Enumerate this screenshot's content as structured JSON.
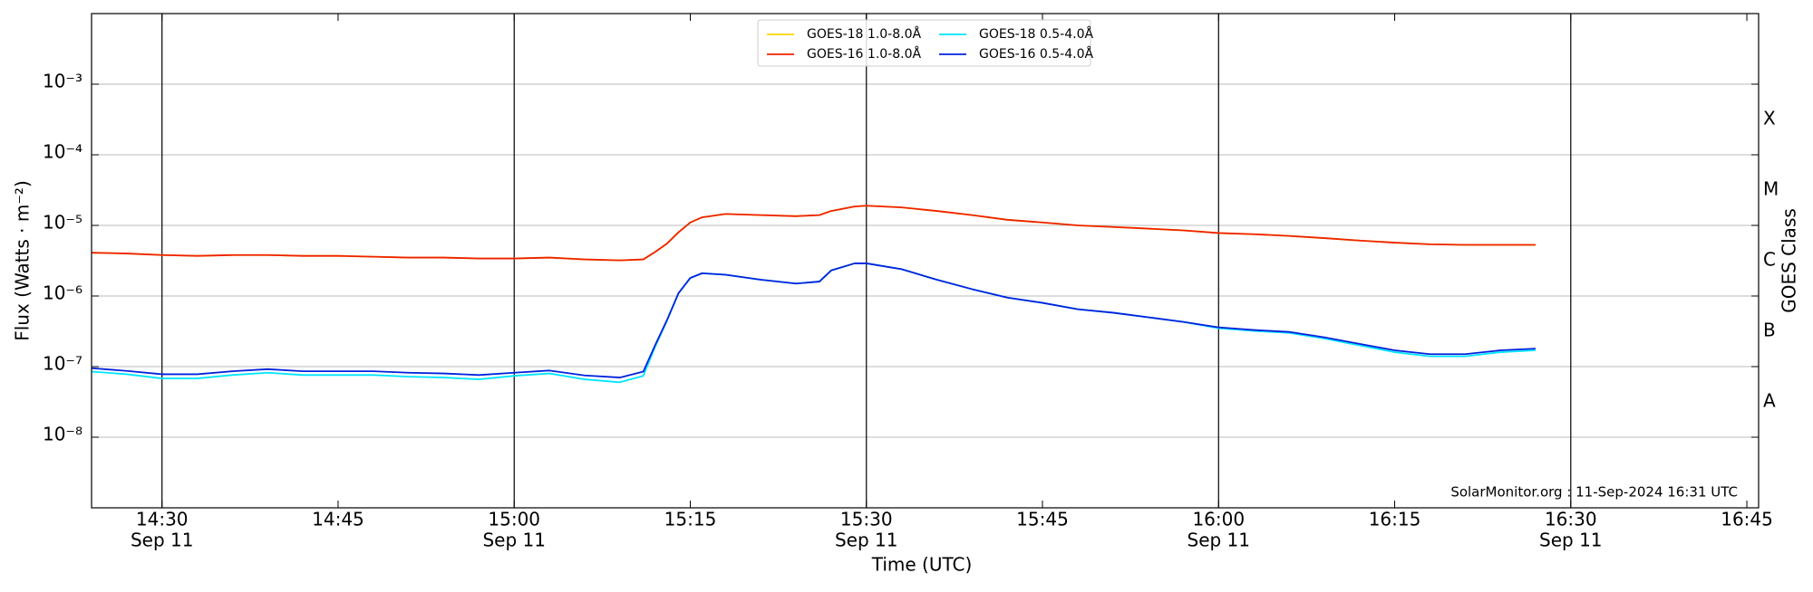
{
  "chart_data": {
    "type": "line",
    "log_y": true,
    "grid": true,
    "legend": "upper center",
    "xlabel": "Time (UTC)",
    "ylabel": "Flux (Watts · m⁻²)",
    "y2label": "GOES Class",
    "annotation": "SolarMonitor.org : 11-Sep-2024 16:31 UTC",
    "xlim": [
      "14:24",
      "16:46"
    ],
    "xticks": [
      {
        "value": "14:30",
        "label": "14:30",
        "date": "Sep 11"
      },
      {
        "value": "14:45",
        "label": "14:45"
      },
      {
        "value": "15:00",
        "label": "15:00",
        "date": "Sep 11"
      },
      {
        "value": "15:15",
        "label": "15:15"
      },
      {
        "value": "15:30",
        "label": "15:30",
        "date": "Sep 11"
      },
      {
        "value": "15:45",
        "label": "15:45"
      },
      {
        "value": "16:00",
        "label": "16:00",
        "date": "Sep 11"
      },
      {
        "value": "16:15",
        "label": "16:15"
      },
      {
        "value": "16:30",
        "label": "16:30",
        "date": "Sep 11"
      },
      {
        "value": "16:45",
        "label": "16:45"
      }
    ],
    "ylim": [
      1e-09,
      0.01
    ],
    "yticks": [
      {
        "value": 1e-08,
        "label": "10⁻⁸"
      },
      {
        "value": 1e-07,
        "label": "10⁻⁷"
      },
      {
        "value": 1e-06,
        "label": "10⁻⁶"
      },
      {
        "value": 1e-05,
        "label": "10⁻⁵"
      },
      {
        "value": 0.0001,
        "label": "10⁻⁴"
      },
      {
        "value": 0.001,
        "label": "10⁻³"
      }
    ],
    "y2ticks": [
      {
        "value": 3.16e-08,
        "label": "A"
      },
      {
        "value": 3.16e-07,
        "label": "B"
      },
      {
        "value": 3.16e-06,
        "label": "C"
      },
      {
        "value": 3.16e-05,
        "label": "M"
      },
      {
        "value": 0.000316,
        "label": "X"
      }
    ],
    "x": [
      "14:24",
      "14:27",
      "14:30",
      "14:33",
      "14:36",
      "14:39",
      "14:42",
      "14:45",
      "14:48",
      "14:51",
      "14:54",
      "14:57",
      "15:00",
      "15:03",
      "15:06",
      "15:09",
      "15:11",
      "15:12",
      "15:13",
      "15:14",
      "15:15",
      "15:16",
      "15:18",
      "15:21",
      "15:24",
      "15:26",
      "15:27",
      "15:29",
      "15:30",
      "15:33",
      "15:36",
      "15:39",
      "15:42",
      "15:45",
      "15:48",
      "15:51",
      "15:54",
      "15:57",
      "16:00",
      "16:03",
      "16:06",
      "16:09",
      "16:12",
      "16:15",
      "16:18",
      "16:21",
      "16:24",
      "16:27"
    ],
    "series": [
      {
        "name": "GOES-18 1.0-8.0Å",
        "color": "#ffd700",
        "values": [
          4.1e-06,
          4e-06,
          3.8e-06,
          3.7e-06,
          3.8e-06,
          3.8e-06,
          3.7e-06,
          3.7e-06,
          3.6e-06,
          3.5e-06,
          3.5e-06,
          3.4e-06,
          3.4e-06,
          3.5e-06,
          3.3e-06,
          3.2e-06,
          3.3e-06,
          4.2e-06,
          5.5e-06,
          8e-06,
          1.1e-05,
          1.3e-05,
          1.45e-05,
          1.4e-05,
          1.35e-05,
          1.4e-05,
          1.6e-05,
          1.85e-05,
          1.9e-05,
          1.8e-05,
          1.6e-05,
          1.4e-05,
          1.2e-05,
          1.1e-05,
          1e-05,
          9.5e-06,
          9e-06,
          8.5e-06,
          7.8e-06,
          7.5e-06,
          7.1e-06,
          6.6e-06,
          6.1e-06,
          5.7e-06,
          5.4e-06,
          5.3e-06,
          5.3e-06,
          5.3e-06
        ]
      },
      {
        "name": "GOES-16 1.0-8.0Å",
        "color": "#ee2200",
        "values": [
          4.1e-06,
          4e-06,
          3.8e-06,
          3.7e-06,
          3.8e-06,
          3.8e-06,
          3.7e-06,
          3.7e-06,
          3.6e-06,
          3.5e-06,
          3.5e-06,
          3.4e-06,
          3.4e-06,
          3.5e-06,
          3.3e-06,
          3.2e-06,
          3.3e-06,
          4.2e-06,
          5.5e-06,
          8e-06,
          1.1e-05,
          1.3e-05,
          1.45e-05,
          1.4e-05,
          1.35e-05,
          1.4e-05,
          1.6e-05,
          1.85e-05,
          1.9e-05,
          1.8e-05,
          1.6e-05,
          1.4e-05,
          1.2e-05,
          1.1e-05,
          1e-05,
          9.5e-06,
          9e-06,
          8.5e-06,
          7.8e-06,
          7.5e-06,
          7.1e-06,
          6.6e-06,
          6.1e-06,
          5.7e-06,
          5.4e-06,
          5.3e-06,
          5.3e-06,
          5.3e-06
        ]
      },
      {
        "name": "GOES-18 0.5-4.0Å",
        "color": "#00e5ff",
        "values": [
          8.5e-08,
          7.8e-08,
          6.8e-08,
          6.8e-08,
          7.6e-08,
          8.2e-08,
          7.6e-08,
          7.6e-08,
          7.6e-08,
          7.2e-08,
          7e-08,
          6.6e-08,
          7.4e-08,
          8e-08,
          6.6e-08,
          6e-08,
          7.4e-08,
          1.9e-07,
          4.4e-07,
          1.1e-06,
          1.8e-06,
          2.1e-06,
          2e-06,
          1.7e-06,
          1.5e-06,
          1.6e-06,
          2.3e-06,
          2.9e-06,
          2.9e-06,
          2.4e-06,
          1.7e-06,
          1.25e-06,
          9.5e-07,
          8e-07,
          6.5e-07,
          5.8e-07,
          5e-07,
          4.3e-07,
          3.5e-07,
          3.2e-07,
          3e-07,
          2.5e-07,
          2e-07,
          1.6e-07,
          1.4e-07,
          1.4e-07,
          1.6e-07,
          1.7e-07
        ]
      },
      {
        "name": "GOES-16 0.5-4.0Å",
        "color": "#0022dd",
        "values": [
          9.5e-08,
          8.7e-08,
          7.8e-08,
          7.8e-08,
          8.6e-08,
          9.2e-08,
          8.6e-08,
          8.6e-08,
          8.6e-08,
          8.2e-08,
          8e-08,
          7.6e-08,
          8.2e-08,
          8.8e-08,
          7.5e-08,
          7e-08,
          8.5e-08,
          2e-07,
          4.5e-07,
          1.1e-06,
          1.8e-06,
          2.1e-06,
          2e-06,
          1.7e-06,
          1.5e-06,
          1.6e-06,
          2.3e-06,
          2.9e-06,
          2.9e-06,
          2.4e-06,
          1.7e-06,
          1.25e-06,
          9.5e-07,
          8e-07,
          6.5e-07,
          5.8e-07,
          5e-07,
          4.3e-07,
          3.6e-07,
          3.3e-07,
          3.1e-07,
          2.6e-07,
          2.1e-07,
          1.7e-07,
          1.5e-07,
          1.5e-07,
          1.7e-07,
          1.8e-07
        ]
      }
    ]
  }
}
